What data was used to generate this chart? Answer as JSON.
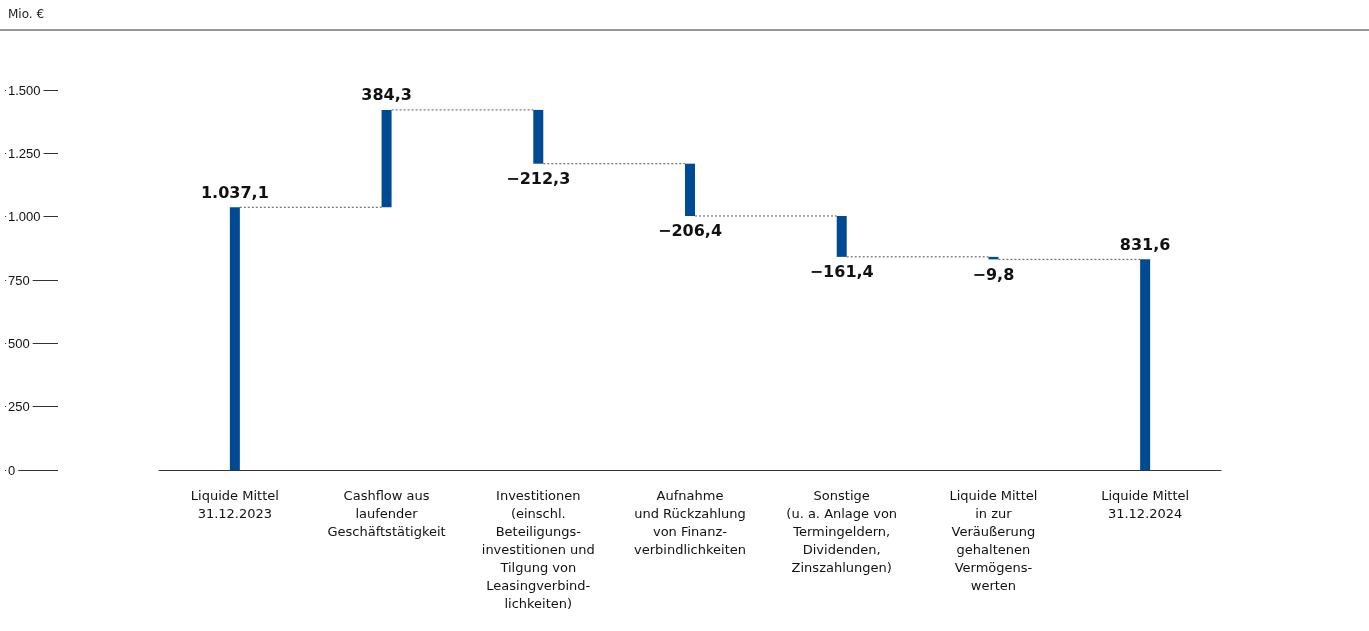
{
  "chart_data": {
    "type": "bar",
    "annotations": [
      "Mio. €"
    ],
    "categories": [
      "Liquide Mittel\n31.12.2023",
      "Cashflow aus\nlaufender\nGeschäftstätigkeit",
      "Investitionen\n(einschl.\nBeteiligungs-\ninvestitionen und\nTilgung von\nLeasingverbind-\nlichkeiten)",
      "Aufnahme\nund Rückzahlung\nvon Finanz-\nverbindlichkeiten",
      "Sonstige\n(u. a. Anlage von\nTermingeldern,\nDividenden,\nZinszahlungen)",
      "Liquide Mittel\nin zur\nVeräußerung\ngehaltenen\nVermögens-\nwerten",
      "Liquide Mittel\n31.12.2024"
    ],
    "values": [
      1037.1,
      384.3,
      -212.3,
      -206.4,
      -161.4,
      -9.8,
      831.6
    ],
    "base": [
      0,
      1037.1,
      1421.4,
      1209.1,
      1002.7,
      841.3,
      0
    ],
    "value_labels": [
      "1.037,1",
      "384,3",
      "−212,3",
      "−206,4",
      "−161,4",
      "−9,8",
      "831,6"
    ],
    "color": "#004a93",
    "ylim": [
      0,
      1500
    ],
    "yticks": [
      0,
      250,
      500,
      750,
      {
        "value": 1000,
        "label": "1.000"
      },
      {
        "value": 1250,
        "label": "1.250"
      },
      {
        "value": 1500,
        "label": "1.500"
      }
    ],
    "grid": false
  }
}
